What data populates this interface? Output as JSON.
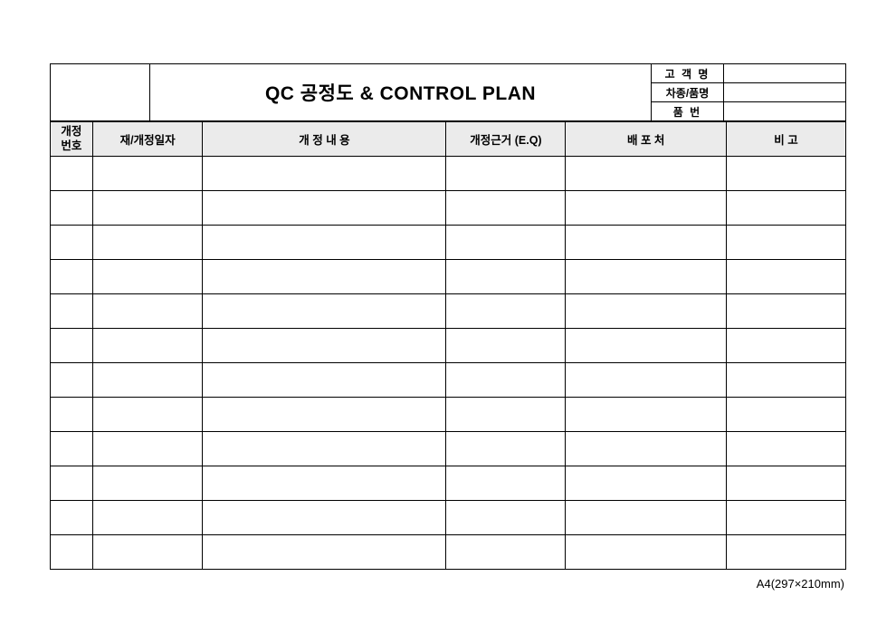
{
  "header": {
    "title": "QC 공정도 & CONTROL PLAN",
    "meta": {
      "customer_label": "고 객 명",
      "customer_value": "",
      "model_label": "차종/품명",
      "model_value": "",
      "partno_label": "품    번",
      "partno_value": ""
    }
  },
  "columns": {
    "rev_no_l1": "개정",
    "rev_no_l2": "번호",
    "rev_date": "재/개정일자",
    "rev_content": "개    정    내    용",
    "rev_basis": "개정근거 (E.Q)",
    "distribution": "배 포 처",
    "remark": "비    고"
  },
  "row_count": 12,
  "footnote": "A4(297×210mm)"
}
